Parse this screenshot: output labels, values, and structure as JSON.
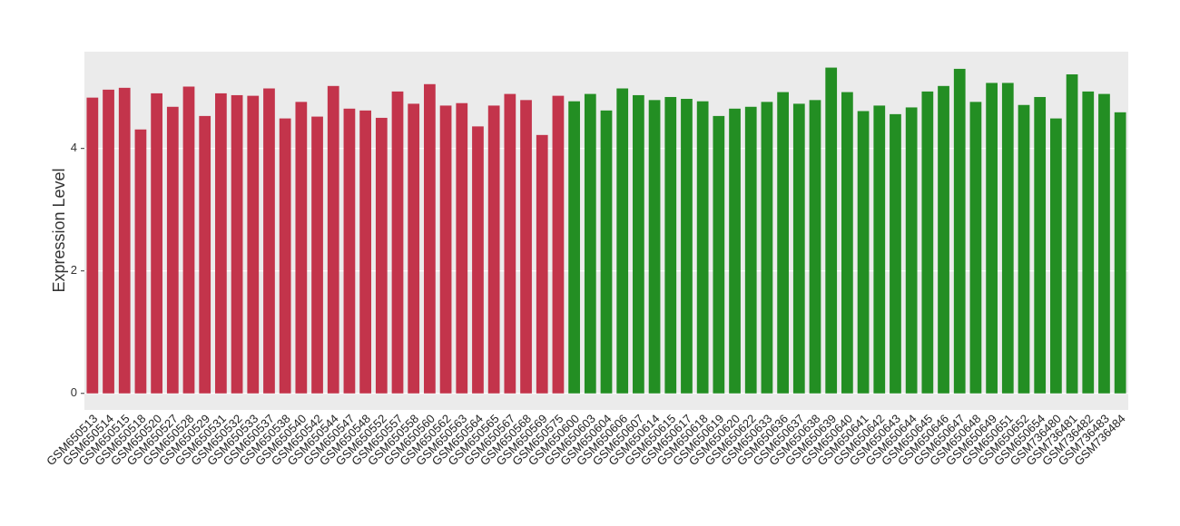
{
  "chart_data": {
    "type": "bar",
    "y_label": "Expression Level",
    "categories": [
      "GSM650513",
      "GSM650514",
      "GSM650515",
      "GSM650518",
      "GSM650520",
      "GSM650527",
      "GSM650528",
      "GSM650529",
      "GSM650531",
      "GSM650532",
      "GSM650533",
      "GSM650537",
      "GSM650538",
      "GSM650540",
      "GSM650542",
      "GSM650544",
      "GSM650547",
      "GSM650548",
      "GSM650552",
      "GSM650557",
      "GSM650558",
      "GSM650560",
      "GSM650562",
      "GSM650563",
      "GSM650564",
      "GSM650565",
      "GSM650567",
      "GSM650568",
      "GSM650569",
      "GSM650575",
      "GSM650600",
      "GSM650603",
      "GSM650604",
      "GSM650606",
      "GSM650607",
      "GSM650614",
      "GSM650615",
      "GSM650617",
      "GSM650618",
      "GSM650619",
      "GSM650620",
      "GSM650622",
      "GSM650633",
      "GSM650636",
      "GSM650637",
      "GSM650638",
      "GSM650639",
      "GSM650640",
      "GSM650641",
      "GSM650642",
      "GSM650643",
      "GSM650644",
      "GSM650645",
      "GSM650646",
      "GSM650647",
      "GSM650648",
      "GSM650649",
      "GSM650651",
      "GSM650652",
      "GSM650654",
      "GSM736480",
      "GSM736481",
      "GSM736482",
      "GSM736483",
      "GSM736484"
    ],
    "values": [
      4.83,
      4.96,
      4.99,
      4.31,
      4.9,
      4.68,
      5.01,
      4.53,
      4.9,
      4.87,
      4.86,
      4.98,
      4.49,
      4.76,
      4.52,
      5.02,
      4.65,
      4.62,
      4.5,
      4.93,
      4.73,
      5.05,
      4.7,
      4.74,
      4.36,
      4.7,
      4.89,
      4.79,
      4.22,
      4.86,
      4.77,
      4.89,
      4.62,
      4.98,
      4.87,
      4.79,
      4.84,
      4.81,
      4.77,
      4.53,
      4.65,
      4.68,
      4.76,
      4.92,
      4.73,
      4.79,
      5.32,
      4.92,
      4.61,
      4.7,
      4.56,
      4.67,
      4.93,
      5.02,
      5.3,
      4.76,
      5.07,
      5.07,
      4.71,
      4.84,
      4.49,
      5.21,
      4.93,
      4.89,
      4.59
    ],
    "colors": [
      "#c3344b",
      "#c3344b",
      "#c3344b",
      "#c3344b",
      "#c3344b",
      "#c3344b",
      "#c3344b",
      "#c3344b",
      "#c3344b",
      "#c3344b",
      "#c3344b",
      "#c3344b",
      "#c3344b",
      "#c3344b",
      "#c3344b",
      "#c3344b",
      "#c3344b",
      "#c3344b",
      "#c3344b",
      "#c3344b",
      "#c3344b",
      "#c3344b",
      "#c3344b",
      "#c3344b",
      "#c3344b",
      "#c3344b",
      "#c3344b",
      "#c3344b",
      "#c3344b",
      "#c3344b",
      "#238e23",
      "#238e23",
      "#238e23",
      "#238e23",
      "#238e23",
      "#238e23",
      "#238e23",
      "#238e23",
      "#238e23",
      "#238e23",
      "#238e23",
      "#238e23",
      "#238e23",
      "#238e23",
      "#238e23",
      "#238e23",
      "#238e23",
      "#238e23",
      "#238e23",
      "#238e23",
      "#238e23",
      "#238e23",
      "#238e23",
      "#238e23",
      "#238e23",
      "#238e23",
      "#238e23",
      "#238e23",
      "#238e23",
      "#238e23",
      "#238e23",
      "#238e23",
      "#238e23",
      "#238e23",
      "#238e23"
    ],
    "ylim": [
      -0.27,
      5.58
    ],
    "yticks": [
      0,
      2,
      4
    ],
    "grid": true
  }
}
